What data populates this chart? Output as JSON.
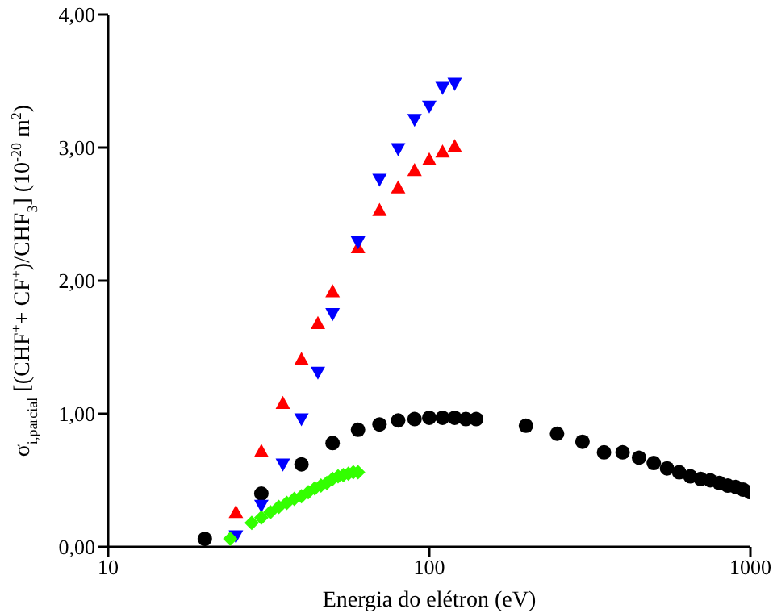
{
  "chart_data": {
    "type": "scatter",
    "xlabel": "Energia do elétron (eV)",
    "ylabel": "σ$_{i,parcial}$ [(CHF$^{+}$+ CF$^{+}$)/CHF$_{3}$] (10$^{-20}$ m$^{2}$)",
    "log": "x",
    "xlim": [
      10,
      1000
    ],
    "xticks": [
      10,
      100,
      1000
    ],
    "ylim": [
      0,
      4
    ],
    "yticks": [
      {
        "value": 0,
        "label": "0,00"
      },
      {
        "value": 1,
        "label": "1,00"
      },
      {
        "value": 2,
        "label": "2,00"
      },
      {
        "value": 3,
        "label": "3,00"
      },
      {
        "value": 4,
        "label": "4,00"
      }
    ],
    "grid": false,
    "legend": false,
    "series": [
      {
        "color": "#000000",
        "marker": "circle",
        "x": [
          20,
          30,
          40,
          50,
          60,
          70,
          80,
          90,
          100,
          110,
          120,
          130,
          140,
          200,
          250,
          300,
          350,
          400,
          450,
          500,
          550,
          600,
          650,
          700,
          750,
          800,
          850,
          900,
          950,
          1000
        ],
        "values": [
          0.06,
          0.4,
          0.62,
          0.78,
          0.88,
          0.92,
          0.95,
          0.96,
          0.97,
          0.97,
          0.97,
          0.96,
          0.96,
          0.91,
          0.85,
          0.79,
          0.71,
          0.71,
          0.67,
          0.63,
          0.59,
          0.56,
          0.53,
          0.51,
          0.5,
          0.48,
          0.46,
          0.45,
          0.43,
          0.41
        ]
      },
      {
        "color": "#ff0000",
        "marker": "triangle",
        "x": [
          25,
          30,
          35,
          40,
          45,
          50,
          60,
          70,
          80,
          90,
          100,
          110,
          120
        ],
        "values": [
          0.26,
          0.72,
          1.08,
          1.41,
          1.68,
          1.92,
          2.25,
          2.53,
          2.7,
          2.83,
          2.91,
          2.97,
          3.01
        ]
      },
      {
        "color": "#0000ff",
        "marker": "triangle-down",
        "x": [
          25,
          30,
          35,
          40,
          45,
          50,
          60,
          70,
          80,
          90,
          100,
          110,
          120
        ],
        "values": [
          0.08,
          0.31,
          0.62,
          0.96,
          1.31,
          1.75,
          2.29,
          2.76,
          2.99,
          3.21,
          3.31,
          3.45,
          3.48
        ]
      },
      {
        "color": "#33ff00",
        "marker": "diamond",
        "x": [
          24,
          28,
          30,
          32,
          34,
          36,
          38,
          40,
          42,
          44,
          46,
          48,
          50,
          52,
          54,
          56,
          58,
          60
        ],
        "values": [
          0.06,
          0.18,
          0.22,
          0.26,
          0.3,
          0.33,
          0.36,
          0.38,
          0.41,
          0.44,
          0.46,
          0.48,
          0.51,
          0.53,
          0.54,
          0.55,
          0.56,
          0.56
        ]
      }
    ]
  }
}
